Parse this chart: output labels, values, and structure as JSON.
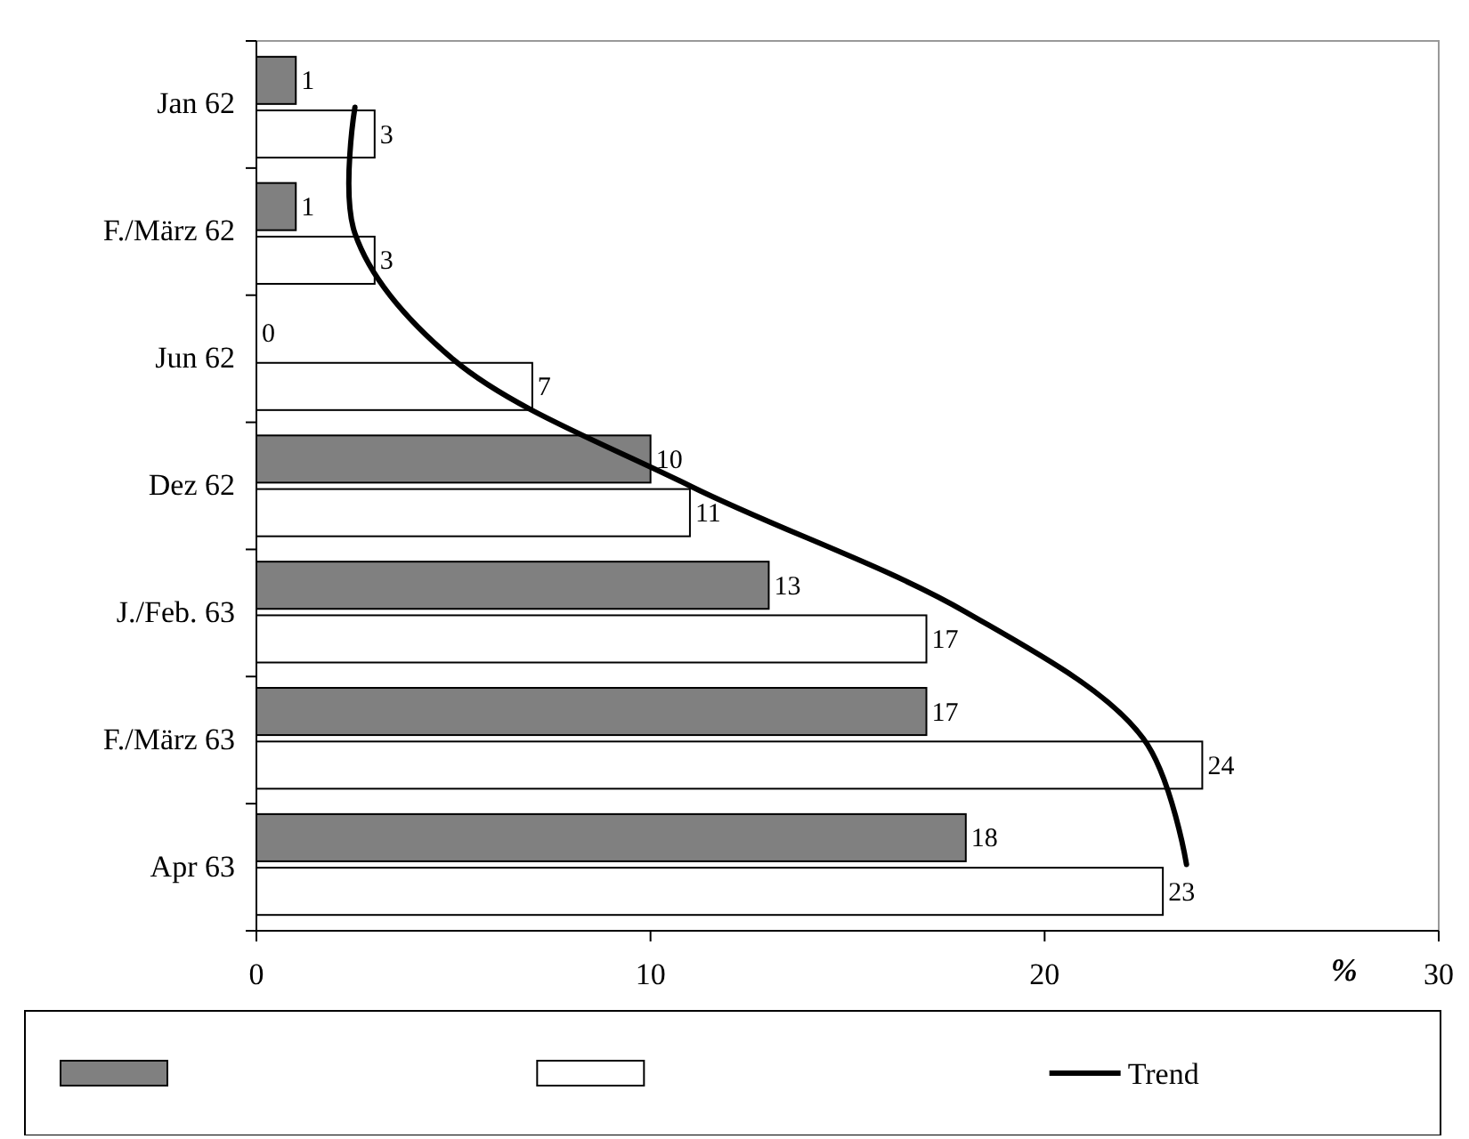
{
  "chart_data": {
    "type": "bar",
    "orientation": "horizontal",
    "categories": [
      "Jan 62",
      "F./März 62",
      "Jun 62",
      "Dez 62",
      "J./Feb. 63",
      "F./März 63",
      "Apr 63"
    ],
    "series": [
      {
        "type": "bar",
        "color": "#808080",
        "values": [
          1,
          1,
          0,
          10,
          13,
          17,
          18
        ],
        "value_labels": [
          "1",
          "1",
          "0",
          "10",
          "13",
          "17",
          "18"
        ]
      },
      {
        "type": "bar",
        "color": "#ffffff",
        "values": [
          3,
          3,
          7,
          11,
          17,
          24,
          23
        ],
        "value_labels": [
          "3",
          "3",
          "7",
          "11",
          "17",
          "24",
          "23"
        ]
      },
      {
        "type": "line",
        "name": "Trend",
        "color": "#000000",
        "values": [
          2.5,
          2.5,
          5,
          11,
          18,
          22.5,
          23.6
        ]
      }
    ],
    "xlabel": "%",
    "xlim": [
      0,
      30
    ],
    "xticks": [
      0,
      10,
      20,
      30
    ],
    "legend": "bottom",
    "grid": false
  }
}
